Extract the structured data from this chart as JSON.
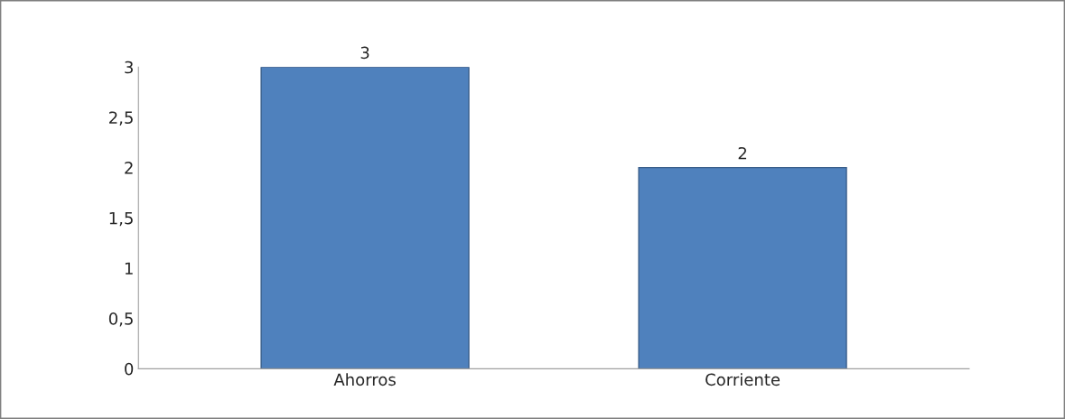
{
  "chart_data": {
    "type": "bar",
    "categories": [
      "Ahorros",
      "Corriente"
    ],
    "values": [
      3,
      2
    ],
    "color": "#4f81bd",
    "ylim": [
      0,
      3
    ],
    "yticks": [
      0,
      {
        "value": 0.5,
        "label": "0,5"
      },
      1,
      {
        "value": 1.5,
        "label": "1,5"
      },
      2,
      {
        "value": 2.5,
        "label": "2,5"
      },
      3
    ],
    "data_labels": true,
    "grid": false
  }
}
